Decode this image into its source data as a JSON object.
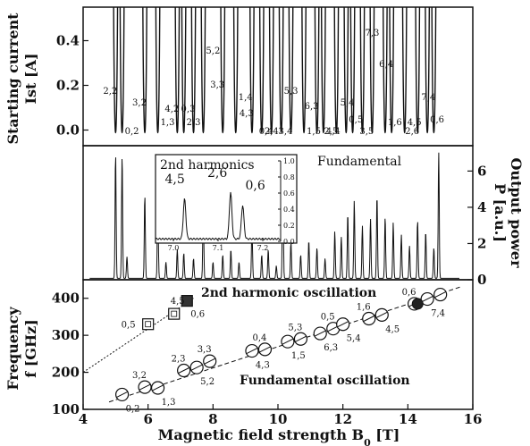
{
  "chart_data": [
    {
      "panel": "top",
      "type": "line",
      "ylabel_lines": [
        "Starting current",
        "Ist [A]"
      ],
      "ylim": [
        -0.07,
        0.55
      ],
      "yticks": [
        0.0,
        0.2,
        0.4
      ],
      "ytick_labels": [
        "0.0",
        "0.2",
        "0.4"
      ],
      "curves": [
        {
          "label": "2,2",
          "x": 5.0
        },
        {
          "label": "0,2",
          "x": 5.2
        },
        {
          "label": "3,2",
          "x": 5.9
        },
        {
          "label": "1,3",
          "x": 6.3
        },
        {
          "label": "4,2",
          "x": 6.9
        },
        {
          "label": "2,3",
          "x": 7.1
        },
        {
          "label": "0,3",
          "x": 7.4
        },
        {
          "label": "5,2",
          "x": 7.7
        },
        {
          "label": "3,3",
          "x": 8.3
        },
        {
          "label": "1,4",
          "x": 8.7
        },
        {
          "label": "4,3",
          "x": 9.2
        },
        {
          "label": "2,4",
          "x": 9.5
        },
        {
          "label": "0,4",
          "x": 9.8
        },
        {
          "label": "5,3",
          "x": 10.1
        },
        {
          "label": "3,4",
          "x": 10.4
        },
        {
          "label": "1,5",
          "x": 10.8
        },
        {
          "label": "6,3",
          "x": 11.2
        },
        {
          "label": "4,4",
          "x": 11.4
        },
        {
          "label": "2,5",
          "x": 11.8
        },
        {
          "label": "0,5",
          "x": 12.1
        },
        {
          "label": "5,4",
          "x": 12.3
        },
        {
          "label": "7,3",
          "x": 12.6
        },
        {
          "label": "3,5",
          "x": 12.9
        },
        {
          "label": "1,6",
          "x": 13.3
        },
        {
          "label": "6,4",
          "x": 13.5
        },
        {
          "label": "4,5",
          "x": 13.9
        },
        {
          "label": "2,6",
          "x": 14.3
        },
        {
          "label": "0,6",
          "x": 14.6
        },
        {
          "label": "7,4",
          "x": 14.8
        }
      ]
    },
    {
      "panel": "middle",
      "type": "line",
      "ylabel_lines": [
        "Output power",
        "P [a.u.]"
      ],
      "ylim": [
        0,
        7.4
      ],
      "yticks": [
        0,
        2,
        4,
        6
      ],
      "ytick_labels": [
        "0",
        "2",
        "4",
        "6"
      ],
      "annotation": "Fundamental",
      "peaks": [
        {
          "x": 5.0,
          "y": 6.9
        },
        {
          "x": 5.2,
          "y": 6.8
        },
        {
          "x": 5.35,
          "y": 1.2
        },
        {
          "x": 5.9,
          "y": 4.6
        },
        {
          "x": 6.3,
          "y": 4.8
        },
        {
          "x": 6.55,
          "y": 0.9
        },
        {
          "x": 6.9,
          "y": 1.6
        },
        {
          "x": 7.1,
          "y": 1.4
        },
        {
          "x": 7.4,
          "y": 1.1
        },
        {
          "x": 7.7,
          "y": 3.9
        },
        {
          "x": 8.0,
          "y": 0.9
        },
        {
          "x": 8.3,
          "y": 1.3
        },
        {
          "x": 8.55,
          "y": 1.6
        },
        {
          "x": 8.8,
          "y": 0.9
        },
        {
          "x": 9.2,
          "y": 2.9
        },
        {
          "x": 9.5,
          "y": 1.3
        },
        {
          "x": 9.7,
          "y": 1.6
        },
        {
          "x": 9.95,
          "y": 0.7
        },
        {
          "x": 10.15,
          "y": 6.9
        },
        {
          "x": 10.4,
          "y": 2.0
        },
        {
          "x": 10.7,
          "y": 1.3
        },
        {
          "x": 10.95,
          "y": 2.1
        },
        {
          "x": 11.2,
          "y": 1.7
        },
        {
          "x": 11.45,
          "y": 1.1
        },
        {
          "x": 11.75,
          "y": 2.6
        },
        {
          "x": 11.95,
          "y": 2.3
        },
        {
          "x": 12.15,
          "y": 3.6
        },
        {
          "x": 12.35,
          "y": 4.3
        },
        {
          "x": 12.6,
          "y": 2.9
        },
        {
          "x": 12.85,
          "y": 3.3
        },
        {
          "x": 13.05,
          "y": 4.6
        },
        {
          "x": 13.3,
          "y": 3.4
        },
        {
          "x": 13.55,
          "y": 3.1
        },
        {
          "x": 13.8,
          "y": 2.4
        },
        {
          "x": 14.05,
          "y": 1.8
        },
        {
          "x": 14.3,
          "y": 3.2
        },
        {
          "x": 14.55,
          "y": 2.6
        },
        {
          "x": 14.8,
          "y": 1.7
        },
        {
          "x": 14.95,
          "y": 7.0
        }
      ],
      "inset": {
        "title": "2nd harmonics",
        "xlim": [
          6.96,
          7.24
        ],
        "ylim": [
          0,
          1.0
        ],
        "xticks": [
          7.0,
          7.1,
          7.2
        ],
        "xtick_labels": [
          "7.0",
          "7.1",
          "7.2"
        ],
        "yticks": [
          0.0,
          0.2,
          0.4,
          0.6,
          0.8,
          1.0
        ],
        "ytick_labels": [
          "0.0",
          "0.2",
          "0.4",
          "0.6",
          "0.8",
          "1.0"
        ],
        "peaks": [
          {
            "label": "4,5",
            "x": 7.025,
            "y": 0.5
          },
          {
            "label": "2,6",
            "x": 7.128,
            "y": 0.58
          },
          {
            "label": "0,6",
            "x": 7.155,
            "y": 0.42
          }
        ]
      }
    },
    {
      "panel": "bottom",
      "type": "scatter",
      "xlabel": "Magnetic field strength B",
      "xlabel_sub": "0",
      "xlabel_unit": " [T]",
      "ylabel_lines": [
        "Frequency",
        "f [GHz]"
      ],
      "xlim": [
        4,
        16
      ],
      "ylim": [
        100,
        450
      ],
      "xticks": [
        4,
        6,
        8,
        10,
        12,
        14,
        16
      ],
      "xtick_labels": [
        "4",
        "6",
        "8",
        "10",
        "12",
        "14",
        "16"
      ],
      "yticks": [
        100,
        200,
        300,
        400
      ],
      "ytick_labels": [
        "100",
        "200",
        "300",
        "400"
      ],
      "annotations": [
        "2nd harmonic oscillation",
        "Fundamental oscillation"
      ],
      "series": [
        {
          "name": "Fundamental oscillation",
          "marker": "circle",
          "points": [
            {
              "label": "0,2",
              "x": 5.2,
              "y": 140
            },
            {
              "label": "3,2",
              "x": 5.9,
              "y": 160
            },
            {
              "label": "1,3",
              "x": 6.3,
              "y": 158
            },
            {
              "label": "2,3",
              "x": 7.1,
              "y": 205
            },
            {
              "label": "5,2",
              "x": 7.5,
              "y": 213
            },
            {
              "label": "3,3",
              "x": 7.9,
              "y": 230
            },
            {
              "label": "4,3",
              "x": 9.2,
              "y": 258
            },
            {
              "label": "0,4",
              "x": 9.6,
              "y": 262
            },
            {
              "label": "1,5",
              "x": 10.3,
              "y": 283
            },
            {
              "label": "5,3",
              "x": 10.7,
              "y": 290
            },
            {
              "label": "6,3",
              "x": 11.3,
              "y": 305
            },
            {
              "label": "0,5",
              "x": 11.7,
              "y": 318
            },
            {
              "label": "5,4",
              "x": 12.0,
              "y": 330
            },
            {
              "label": "1,6",
              "x": 12.8,
              "y": 345
            },
            {
              "label": "4,5",
              "x": 13.2,
              "y": 355
            },
            {
              "label": "0,6",
              "x": 14.2,
              "y": 385
            },
            {
              "label": "7,4",
              "x": 14.6,
              "y": 398
            },
            {
              "label": "",
              "x": 15.0,
              "y": 410
            }
          ]
        },
        {
          "name": "2nd harmonic oscillation",
          "marker": "square",
          "points": [
            {
              "label": "0,5",
              "x": 6.0,
              "y": 330,
              "filled": false
            },
            {
              "label": "4,5",
              "x": 6.8,
              "y": 358,
              "filled": false
            },
            {
              "label": "0,6",
              "x": 7.2,
              "y": 393,
              "filled": true
            }
          ]
        }
      ],
      "fit_lines": [
        {
          "name": "fundamental",
          "x": [
            4.8,
            15.6
          ],
          "y": [
            120,
            430
          ]
        },
        {
          "name": "harmonic",
          "x": [
            4.0,
            7.4
          ],
          "y": [
            200,
            400
          ]
        }
      ],
      "extra_filled_circle": {
        "x": 14.3,
        "y": 385
      }
    }
  ]
}
